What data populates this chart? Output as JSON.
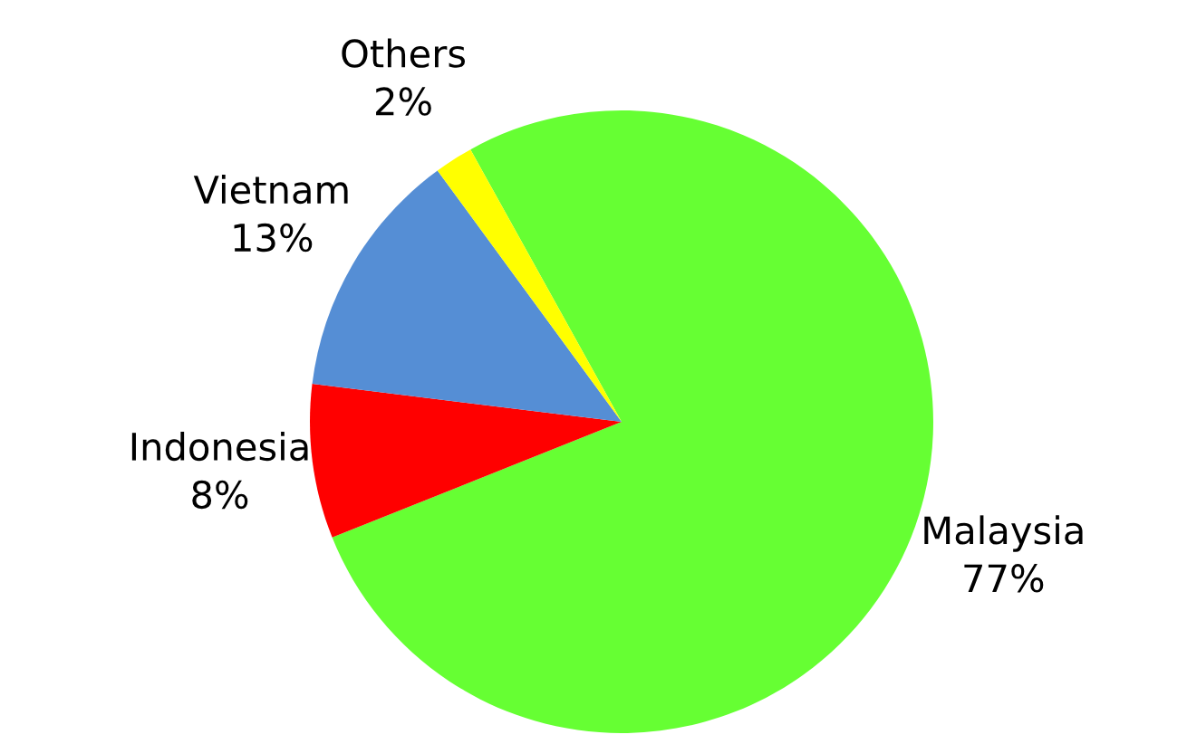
{
  "chart_data": {
    "type": "pie",
    "categories": [
      "Malaysia",
      "Indonesia",
      "Vietnam",
      "Others"
    ],
    "values": [
      77,
      8,
      13,
      2
    ],
    "value_labels": [
      "77%",
      "8%",
      "13%",
      "2%"
    ],
    "colors": [
      "#66ff33",
      "#ff0000",
      "#558ed5",
      "#ffff00"
    ]
  }
}
